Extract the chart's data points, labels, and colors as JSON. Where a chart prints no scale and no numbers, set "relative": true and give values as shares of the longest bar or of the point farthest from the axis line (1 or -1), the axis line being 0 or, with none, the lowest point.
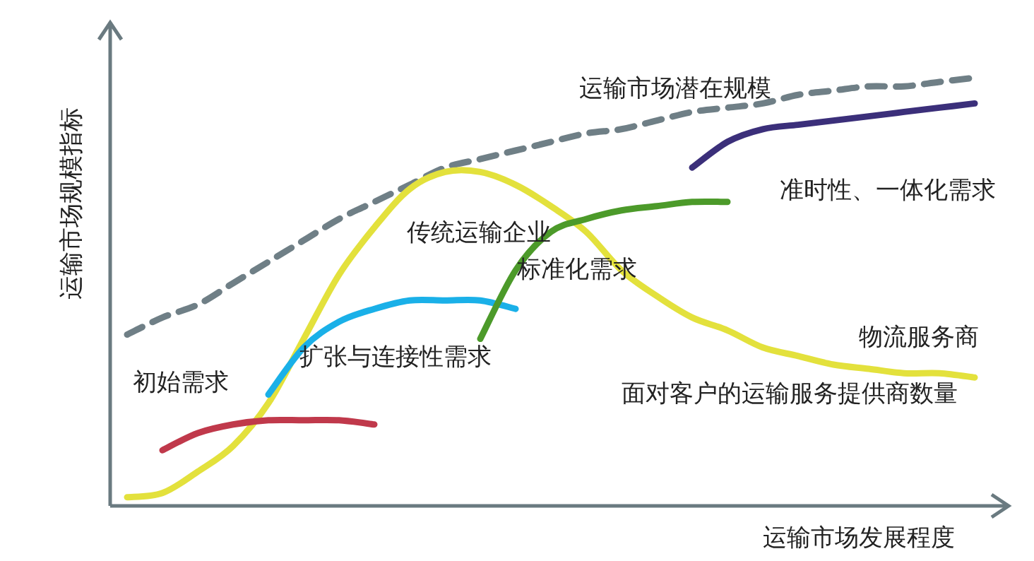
{
  "chart_data": {
    "type": "line",
    "relative": true,
    "xlabel": "运输市场发展程度",
    "ylabel": "运输市场规模指标",
    "categories": [
      null,
      null,
      null,
      null,
      null,
      null,
      null,
      null,
      null,
      null,
      null,
      null,
      null,
      null,
      null,
      null,
      null,
      null,
      null,
      null,
      null,
      null,
      null,
      null,
      null
    ],
    "series": [
      {
        "name": "运输市场潜在规模",
        "color": "#6f7f86",
        "line_style": "dashed",
        "values": [
          0.4,
          0.44,
          0.47,
          0.52,
          0.57,
          0.62,
          0.67,
          0.71,
          0.75,
          0.79,
          0.81,
          0.83,
          0.85,
          0.87,
          0.88,
          0.9,
          0.92,
          0.93,
          0.94,
          0.96,
          0.97,
          0.98,
          0.98,
          0.99,
          1.0
        ]
      },
      {
        "name": "面对客户的运输服务提供商数量",
        "color": "#e3e13c",
        "values": [
          0.02,
          0.03,
          0.08,
          0.14,
          0.24,
          0.39,
          0.54,
          0.65,
          0.74,
          0.78,
          0.78,
          0.75,
          0.7,
          0.64,
          0.55,
          0.49,
          0.44,
          0.41,
          0.37,
          0.35,
          0.33,
          0.32,
          0.31,
          0.31,
          0.3
        ]
      },
      {
        "name": "初始需求",
        "color": "#c0394b",
        "values": [
          null,
          0.13,
          0.17,
          0.19,
          0.2,
          0.2,
          0.2,
          0.19,
          null,
          null,
          null,
          null,
          null,
          null,
          null,
          null,
          null,
          null,
          null,
          null,
          null,
          null,
          null,
          null,
          null
        ]
      },
      {
        "name": "扩张与连接性需求",
        "color": "#1ab0e8",
        "values": [
          null,
          null,
          null,
          null,
          0.26,
          0.37,
          0.43,
          0.46,
          0.48,
          0.48,
          0.48,
          0.46,
          null,
          null,
          null,
          null,
          null,
          null,
          null,
          null,
          null,
          null,
          null,
          null,
          null
        ]
      },
      {
        "name": "标准化需求",
        "color": "#4c9a2a",
        "values": [
          null,
          null,
          null,
          null,
          null,
          null,
          null,
          null,
          null,
          null,
          0.39,
          0.55,
          0.64,
          0.67,
          0.69,
          0.7,
          0.71,
          0.71,
          null,
          null,
          null,
          null,
          null,
          null,
          null
        ]
      },
      {
        "name": "准时性、一体化需求",
        "color": "#3b2f7a",
        "values": [
          null,
          null,
          null,
          null,
          null,
          null,
          null,
          null,
          null,
          null,
          null,
          null,
          null,
          null,
          null,
          null,
          0.79,
          0.85,
          0.88,
          0.89,
          0.9,
          0.91,
          0.92,
          0.93,
          0.94
        ]
      }
    ],
    "annotations": [
      "传统运输企业",
      "物流服务商"
    ]
  }
}
